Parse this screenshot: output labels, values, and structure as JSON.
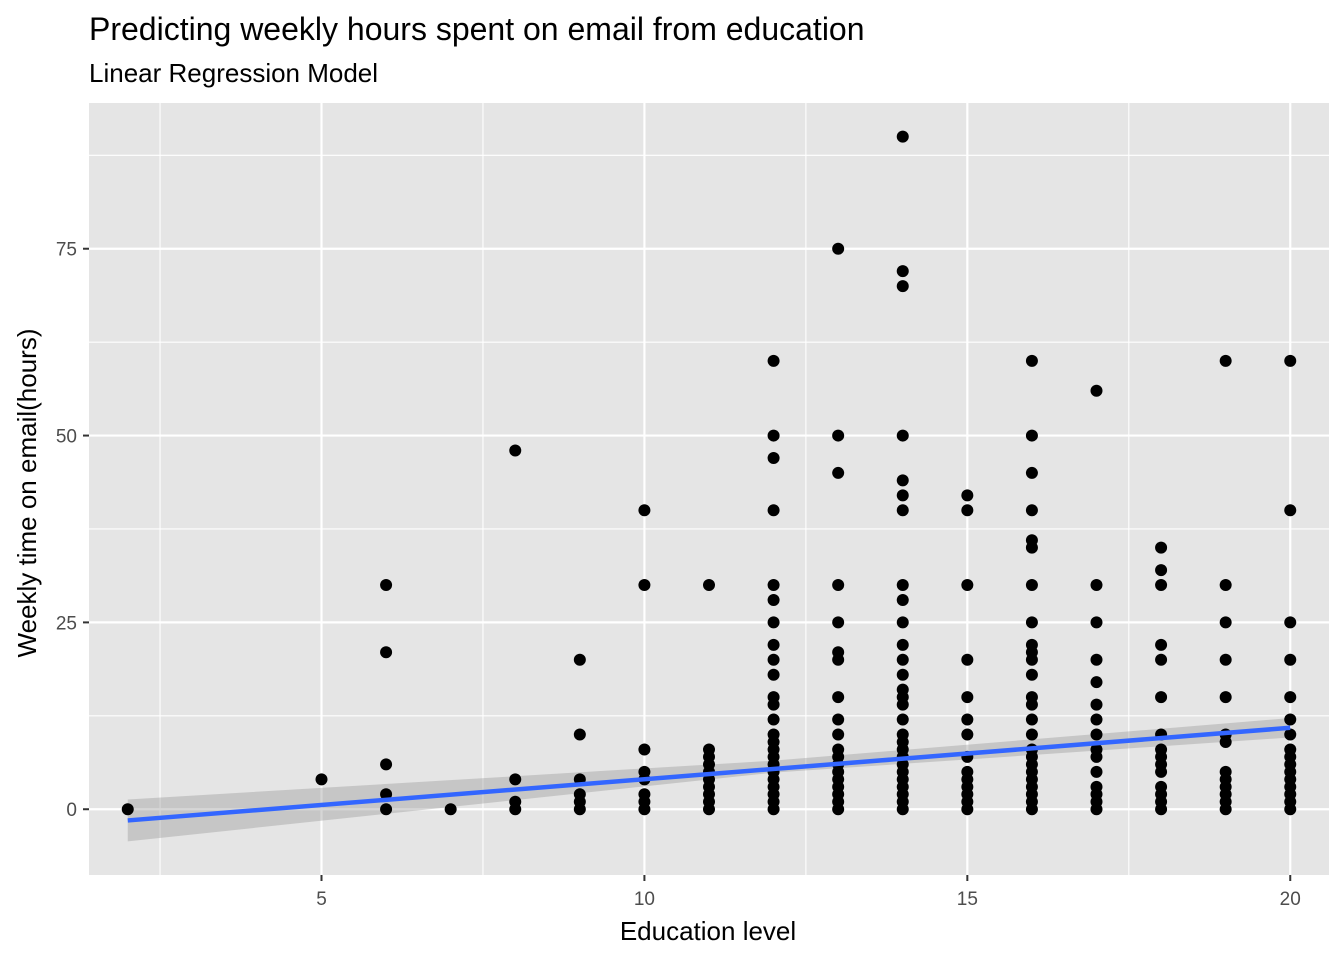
{
  "chart_data": {
    "type": "scatter",
    "title": "Predicting weekly hours spent on email from education",
    "subtitle": "Linear Regression Model",
    "xlabel": "Education level",
    "ylabel": "Weekly time on email(hours)",
    "xlim": [
      1.4,
      20.6
    ],
    "ylim": [
      -8.8,
      94.5
    ],
    "xticks": [
      5,
      10,
      15,
      20
    ],
    "yticks": [
      0,
      25,
      50,
      75
    ],
    "grid": true,
    "panel_background": "#e5e5e5",
    "grid_color": "#ffffff",
    "point_color": "#000000",
    "points": [
      {
        "x": 2,
        "y": 0
      },
      {
        "x": 5,
        "y": 4
      },
      {
        "x": 6,
        "y": 0
      },
      {
        "x": 6,
        "y": 2
      },
      {
        "x": 6,
        "y": 6
      },
      {
        "x": 6,
        "y": 21
      },
      {
        "x": 6,
        "y": 30
      },
      {
        "x": 7,
        "y": 0
      },
      {
        "x": 8,
        "y": 0
      },
      {
        "x": 8,
        "y": 1
      },
      {
        "x": 8,
        "y": 4
      },
      {
        "x": 8,
        "y": 48
      },
      {
        "x": 9,
        "y": 0
      },
      {
        "x": 9,
        "y": 1
      },
      {
        "x": 9,
        "y": 2
      },
      {
        "x": 9,
        "y": 4
      },
      {
        "x": 9,
        "y": 10
      },
      {
        "x": 9,
        "y": 20
      },
      {
        "x": 10,
        "y": 0
      },
      {
        "x": 10,
        "y": 1
      },
      {
        "x": 10,
        "y": 2
      },
      {
        "x": 10,
        "y": 4
      },
      {
        "x": 10,
        "y": 5
      },
      {
        "x": 10,
        "y": 8
      },
      {
        "x": 10,
        "y": 30
      },
      {
        "x": 10,
        "y": 40
      },
      {
        "x": 11,
        "y": 0
      },
      {
        "x": 11,
        "y": 1
      },
      {
        "x": 11,
        "y": 2
      },
      {
        "x": 11,
        "y": 3
      },
      {
        "x": 11,
        "y": 4
      },
      {
        "x": 11,
        "y": 5
      },
      {
        "x": 11,
        "y": 6
      },
      {
        "x": 11,
        "y": 7
      },
      {
        "x": 11,
        "y": 8
      },
      {
        "x": 11,
        "y": 30
      },
      {
        "x": 12,
        "y": 0
      },
      {
        "x": 12,
        "y": 1
      },
      {
        "x": 12,
        "y": 2
      },
      {
        "x": 12,
        "y": 3
      },
      {
        "x": 12,
        "y": 4
      },
      {
        "x": 12,
        "y": 5
      },
      {
        "x": 12,
        "y": 6
      },
      {
        "x": 12,
        "y": 7
      },
      {
        "x": 12,
        "y": 8
      },
      {
        "x": 12,
        "y": 9
      },
      {
        "x": 12,
        "y": 10
      },
      {
        "x": 12,
        "y": 12
      },
      {
        "x": 12,
        "y": 14
      },
      {
        "x": 12,
        "y": 15
      },
      {
        "x": 12,
        "y": 18
      },
      {
        "x": 12,
        "y": 20
      },
      {
        "x": 12,
        "y": 22
      },
      {
        "x": 12,
        "y": 25
      },
      {
        "x": 12,
        "y": 28
      },
      {
        "x": 12,
        "y": 30
      },
      {
        "x": 12,
        "y": 40
      },
      {
        "x": 12,
        "y": 47
      },
      {
        "x": 12,
        "y": 50
      },
      {
        "x": 12,
        "y": 60
      },
      {
        "x": 13,
        "y": 0
      },
      {
        "x": 13,
        "y": 1
      },
      {
        "x": 13,
        "y": 2
      },
      {
        "x": 13,
        "y": 3
      },
      {
        "x": 13,
        "y": 4
      },
      {
        "x": 13,
        "y": 5
      },
      {
        "x": 13,
        "y": 6
      },
      {
        "x": 13,
        "y": 7
      },
      {
        "x": 13,
        "y": 8
      },
      {
        "x": 13,
        "y": 10
      },
      {
        "x": 13,
        "y": 12
      },
      {
        "x": 13,
        "y": 15
      },
      {
        "x": 13,
        "y": 20
      },
      {
        "x": 13,
        "y": 21
      },
      {
        "x": 13,
        "y": 25
      },
      {
        "x": 13,
        "y": 30
      },
      {
        "x": 13,
        "y": 45
      },
      {
        "x": 13,
        "y": 50
      },
      {
        "x": 13,
        "y": 75
      },
      {
        "x": 14,
        "y": 0
      },
      {
        "x": 14,
        "y": 1
      },
      {
        "x": 14,
        "y": 2
      },
      {
        "x": 14,
        "y": 3
      },
      {
        "x": 14,
        "y": 4
      },
      {
        "x": 14,
        "y": 5
      },
      {
        "x": 14,
        "y": 6
      },
      {
        "x": 14,
        "y": 7
      },
      {
        "x": 14,
        "y": 8
      },
      {
        "x": 14,
        "y": 9
      },
      {
        "x": 14,
        "y": 10
      },
      {
        "x": 14,
        "y": 12
      },
      {
        "x": 14,
        "y": 14
      },
      {
        "x": 14,
        "y": 15
      },
      {
        "x": 14,
        "y": 16
      },
      {
        "x": 14,
        "y": 18
      },
      {
        "x": 14,
        "y": 20
      },
      {
        "x": 14,
        "y": 22
      },
      {
        "x": 14,
        "y": 25
      },
      {
        "x": 14,
        "y": 28
      },
      {
        "x": 14,
        "y": 30
      },
      {
        "x": 14,
        "y": 40
      },
      {
        "x": 14,
        "y": 42
      },
      {
        "x": 14,
        "y": 44
      },
      {
        "x": 14,
        "y": 50
      },
      {
        "x": 14,
        "y": 70
      },
      {
        "x": 14,
        "y": 72
      },
      {
        "x": 14,
        "y": 90
      },
      {
        "x": 15,
        "y": 0
      },
      {
        "x": 15,
        "y": 1
      },
      {
        "x": 15,
        "y": 2
      },
      {
        "x": 15,
        "y": 3
      },
      {
        "x": 15,
        "y": 4
      },
      {
        "x": 15,
        "y": 5
      },
      {
        "x": 15,
        "y": 7
      },
      {
        "x": 15,
        "y": 10
      },
      {
        "x": 15,
        "y": 12
      },
      {
        "x": 15,
        "y": 15
      },
      {
        "x": 15,
        "y": 20
      },
      {
        "x": 15,
        "y": 30
      },
      {
        "x": 15,
        "y": 40
      },
      {
        "x": 15,
        "y": 42
      },
      {
        "x": 16,
        "y": 0
      },
      {
        "x": 16,
        "y": 1
      },
      {
        "x": 16,
        "y": 2
      },
      {
        "x": 16,
        "y": 3
      },
      {
        "x": 16,
        "y": 4
      },
      {
        "x": 16,
        "y": 5
      },
      {
        "x": 16,
        "y": 6
      },
      {
        "x": 16,
        "y": 7
      },
      {
        "x": 16,
        "y": 8
      },
      {
        "x": 16,
        "y": 10
      },
      {
        "x": 16,
        "y": 12
      },
      {
        "x": 16,
        "y": 14
      },
      {
        "x": 16,
        "y": 15
      },
      {
        "x": 16,
        "y": 18
      },
      {
        "x": 16,
        "y": 20
      },
      {
        "x": 16,
        "y": 21
      },
      {
        "x": 16,
        "y": 22
      },
      {
        "x": 16,
        "y": 25
      },
      {
        "x": 16,
        "y": 30
      },
      {
        "x": 16,
        "y": 35
      },
      {
        "x": 16,
        "y": 36
      },
      {
        "x": 16,
        "y": 40
      },
      {
        "x": 16,
        "y": 45
      },
      {
        "x": 16,
        "y": 50
      },
      {
        "x": 16,
        "y": 60
      },
      {
        "x": 17,
        "y": 0
      },
      {
        "x": 17,
        "y": 1
      },
      {
        "x": 17,
        "y": 2
      },
      {
        "x": 17,
        "y": 3
      },
      {
        "x": 17,
        "y": 5
      },
      {
        "x": 17,
        "y": 7
      },
      {
        "x": 17,
        "y": 8
      },
      {
        "x": 17,
        "y": 10
      },
      {
        "x": 17,
        "y": 12
      },
      {
        "x": 17,
        "y": 14
      },
      {
        "x": 17,
        "y": 17
      },
      {
        "x": 17,
        "y": 20
      },
      {
        "x": 17,
        "y": 25
      },
      {
        "x": 17,
        "y": 30
      },
      {
        "x": 17,
        "y": 56
      },
      {
        "x": 18,
        "y": 0
      },
      {
        "x": 18,
        "y": 1
      },
      {
        "x": 18,
        "y": 2
      },
      {
        "x": 18,
        "y": 3
      },
      {
        "x": 18,
        "y": 5
      },
      {
        "x": 18,
        "y": 6
      },
      {
        "x": 18,
        "y": 7
      },
      {
        "x": 18,
        "y": 8
      },
      {
        "x": 18,
        "y": 10
      },
      {
        "x": 18,
        "y": 15
      },
      {
        "x": 18,
        "y": 20
      },
      {
        "x": 18,
        "y": 22
      },
      {
        "x": 18,
        "y": 30
      },
      {
        "x": 18,
        "y": 32
      },
      {
        "x": 18,
        "y": 35
      },
      {
        "x": 19,
        "y": 0
      },
      {
        "x": 19,
        "y": 1
      },
      {
        "x": 19,
        "y": 2
      },
      {
        "x": 19,
        "y": 3
      },
      {
        "x": 19,
        "y": 4
      },
      {
        "x": 19,
        "y": 5
      },
      {
        "x": 19,
        "y": 9
      },
      {
        "x": 19,
        "y": 10
      },
      {
        "x": 19,
        "y": 15
      },
      {
        "x": 19,
        "y": 20
      },
      {
        "x": 19,
        "y": 25
      },
      {
        "x": 19,
        "y": 30
      },
      {
        "x": 19,
        "y": 60
      },
      {
        "x": 20,
        "y": 0
      },
      {
        "x": 20,
        "y": 1
      },
      {
        "x": 20,
        "y": 2
      },
      {
        "x": 20,
        "y": 3
      },
      {
        "x": 20,
        "y": 4
      },
      {
        "x": 20,
        "y": 5
      },
      {
        "x": 20,
        "y": 6
      },
      {
        "x": 20,
        "y": 7
      },
      {
        "x": 20,
        "y": 8
      },
      {
        "x": 20,
        "y": 10
      },
      {
        "x": 20,
        "y": 12
      },
      {
        "x": 20,
        "y": 15
      },
      {
        "x": 20,
        "y": 20
      },
      {
        "x": 20,
        "y": 25
      },
      {
        "x": 20,
        "y": 40
      },
      {
        "x": 20,
        "y": 60
      }
    ],
    "regression": {
      "color": "#3366ff",
      "ribbon_color": "#999999",
      "fit": [
        {
          "x": 2,
          "y": -1.5
        },
        {
          "x": 20,
          "y": 10.9
        }
      ],
      "band": [
        {
          "x": 2,
          "lower": -4.3,
          "upper": 1.3
        },
        {
          "x": 12,
          "lower": 4.9,
          "upper": 6.5
        },
        {
          "x": 20,
          "lower": 9.6,
          "upper": 12.2
        }
      ]
    }
  }
}
